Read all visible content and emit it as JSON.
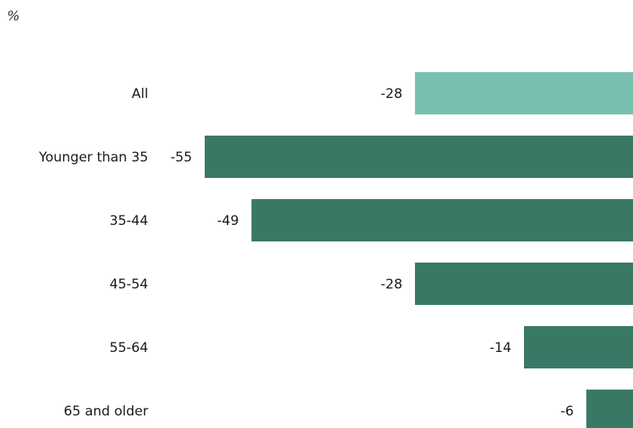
{
  "unit_label": "%",
  "chart_data": {
    "type": "bar",
    "orientation": "horizontal",
    "categories": [
      "All",
      "Younger than 35",
      "35-44",
      "45-54",
      "55-64",
      "65 and older"
    ],
    "values": [
      -28,
      -55,
      -49,
      -28,
      -14,
      -6
    ],
    "value_labels": [
      "-28",
      "-55",
      "-49",
      "-28",
      "-14",
      "-6"
    ],
    "colors": [
      "#79bfb0",
      "#3a7866",
      "#3a7866",
      "#3a7866",
      "#3a7866",
      "#3a7866"
    ],
    "xlim": [
      -55,
      0
    ],
    "grid": false,
    "legend": "none"
  }
}
